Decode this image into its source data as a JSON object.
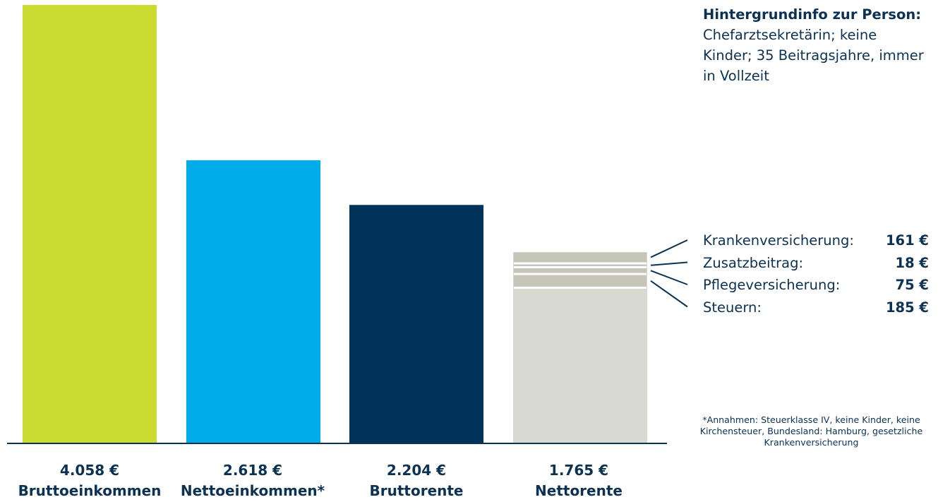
{
  "colors": {
    "text": "#0b3153",
    "baseline": "#0b3153",
    "segment_gap": "#ffffff"
  },
  "chart_data": {
    "type": "bar",
    "currency": "€",
    "categories": [
      "Bruttoeinkommen",
      "Nettoeinkommen*",
      "Bruttorente",
      "Nettorente"
    ],
    "values": [
      4058,
      2618,
      2204,
      1765
    ],
    "value_labels": [
      "4.058 €",
      "2.618 €",
      "2.204 €",
      "1.765 €"
    ],
    "bar_colors": [
      "#cbdb32",
      "#00adeb",
      "#013259",
      "#d8d9d1"
    ],
    "ylim": [
      0,
      4058
    ],
    "grid": false,
    "stacked_segments_on": "Nettorente",
    "deductions": {
      "color": "#c5c6b8",
      "items": [
        {
          "label": "Krankenversicherung:",
          "value": 161,
          "display": "161 €"
        },
        {
          "label": "Zusatzbeitrag:",
          "value": 18,
          "display": "18 €"
        },
        {
          "label": "Pflegeversicherung:",
          "value": 75,
          "display": "75 €"
        },
        {
          "label": "Steuern:",
          "value": 185,
          "display": "185 €"
        }
      ]
    }
  },
  "info": {
    "heading": "Hintergrundinfo zur Person:",
    "text": "Chefarztsekretärin; keine Kinder; 35 Beitragsjahre, immer in Vollzeit"
  },
  "footnote": "*Annahmen: Steuerklasse IV, keine Kinder, keine Kirchensteuer, Bundesland: Hamburg, gesetzliche Krankenversicherung"
}
